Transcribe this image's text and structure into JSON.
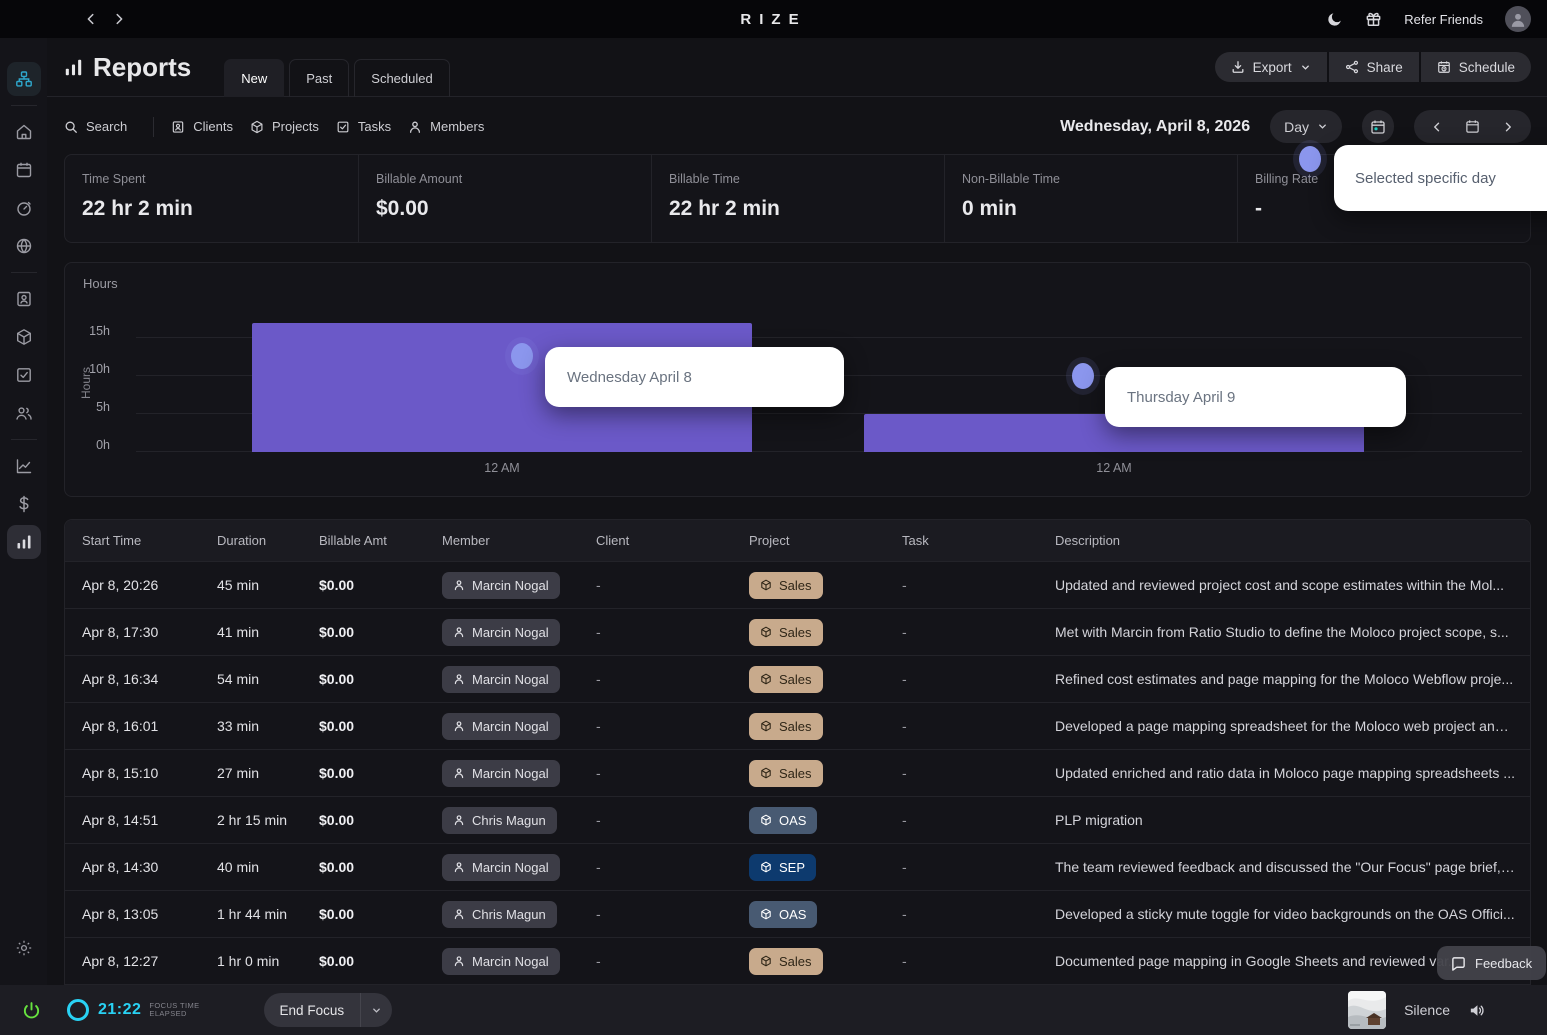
{
  "topbar": {
    "brand": "RIZE",
    "refer_friends": "Refer Friends"
  },
  "sidebar": {
    "items": [
      "workspace-sitemap",
      "home",
      "calendar",
      "timer",
      "globe",
      "clients-card",
      "projects-box",
      "tasks-check",
      "members-people",
      "analytics-line",
      "billing-dollar",
      "reports-bars",
      "settings-gear"
    ],
    "active_item": "reports-bars"
  },
  "reports": {
    "title": "Reports",
    "tabs": [
      "New",
      "Past",
      "Scheduled"
    ],
    "active_tab": "New",
    "actions": {
      "export": "Export",
      "share": "Share",
      "schedule": "Schedule"
    }
  },
  "filters": {
    "search": "Search",
    "clients": "Clients",
    "projects": "Projects",
    "tasks": "Tasks",
    "members": "Members"
  },
  "date_bar": {
    "date": "Wednesday, April 8, 2026",
    "range_selector": "Day"
  },
  "day_tooltip": {
    "text": "Selected specific day"
  },
  "stats": [
    {
      "label": "Time Spent",
      "value": "22 hr 2 min"
    },
    {
      "label": "Billable Amount",
      "value": "$0.00"
    },
    {
      "label": "Billable Time",
      "value": "22 hr 2 min"
    },
    {
      "label": "Non-Billable Time",
      "value": "0 min"
    },
    {
      "label": "Billing Rate",
      "value": "-"
    }
  ],
  "chart_data": {
    "type": "bar",
    "panel_label": "Hours",
    "ylabel": "Hours",
    "categories": [
      "Wednesday April 8",
      "Thursday April 9"
    ],
    "values": [
      17,
      5
    ],
    "unit": "hours",
    "y_ticks": [
      "0h",
      "5h",
      "10h",
      "15h"
    ],
    "ylim": [
      0,
      18.5
    ],
    "x_tick_labels": [
      "12 AM",
      "12 AM"
    ],
    "grid": true,
    "bar_color": "#6b59c8",
    "tooltips": [
      "Wednesday April 8",
      "Thursday April 9"
    ]
  },
  "table": {
    "columns": [
      "Start Time",
      "Duration",
      "Billable Amt",
      "Member",
      "Client",
      "Project",
      "Task",
      "Description"
    ],
    "rows": [
      {
        "start_time": "Apr 8, 20:26",
        "duration": "45 min",
        "billable": "$0.00",
        "member": "Marcin Nogal",
        "client": "-",
        "project": {
          "label": "Sales",
          "chip_class": "chip chip-project p-sales"
        },
        "task": "-",
        "description": "Updated and reviewed project cost and scope estimates within the Mol..."
      },
      {
        "start_time": "Apr 8, 17:30",
        "duration": "41 min",
        "billable": "$0.00",
        "member": "Marcin Nogal",
        "client": "-",
        "project": {
          "label": "Sales",
          "chip_class": "chip chip-project p-sales"
        },
        "task": "-",
        "description": "Met with Marcin from Ratio Studio to define the Moloco project scope, s..."
      },
      {
        "start_time": "Apr 8, 16:34",
        "duration": "54 min",
        "billable": "$0.00",
        "member": "Marcin Nogal",
        "client": "-",
        "project": {
          "label": "Sales",
          "chip_class": "chip chip-project p-sales"
        },
        "task": "-",
        "description": "Refined cost estimates and page mapping for the Moloco Webflow proje..."
      },
      {
        "start_time": "Apr 8, 16:01",
        "duration": "33 min",
        "billable": "$0.00",
        "member": "Marcin Nogal",
        "client": "-",
        "project": {
          "label": "Sales",
          "chip_class": "chip chip-project p-sales"
        },
        "task": "-",
        "description": "Developed a page mapping spreadsheet for the Moloco web project and ..."
      },
      {
        "start_time": "Apr 8, 15:10",
        "duration": "27 min",
        "billable": "$0.00",
        "member": "Marcin Nogal",
        "client": "-",
        "project": {
          "label": "Sales",
          "chip_class": "chip chip-project p-sales"
        },
        "task": "-",
        "description": "Updated enriched and ratio data in Moloco page mapping spreadsheets ..."
      },
      {
        "start_time": "Apr 8, 14:51",
        "duration": "2 hr 15 min",
        "billable": "$0.00",
        "member": "Chris Magun",
        "client": "-",
        "project": {
          "label": "OAS",
          "chip_class": "chip chip-project p-oas"
        },
        "task": "-",
        "description": "PLP migration"
      },
      {
        "start_time": "Apr 8, 14:30",
        "duration": "40 min",
        "billable": "$0.00",
        "member": "Marcin Nogal",
        "client": "-",
        "project": {
          "label": "SEP",
          "chip_class": "chip chip-project p-sep"
        },
        "task": "-",
        "description": "The team reviewed feedback and discussed the \"Our Focus\" page brief, ..."
      },
      {
        "start_time": "Apr 8, 13:05",
        "duration": "1 hr 44 min",
        "billable": "$0.00",
        "member": "Chris Magun",
        "client": "-",
        "project": {
          "label": "OAS",
          "chip_class": "chip chip-project p-oas"
        },
        "task": "-",
        "description": "Developed a sticky mute toggle for video backgrounds on the OAS Offici..."
      },
      {
        "start_time": "Apr 8, 12:27",
        "duration": "1 hr 0 min",
        "billable": "$0.00",
        "member": "Marcin Nogal",
        "client": "-",
        "project": {
          "label": "Sales",
          "chip_class": "chip chip-project p-sales"
        },
        "task": "-",
        "description": "Documented page mapping in Google Sheets and reviewed var..."
      }
    ]
  },
  "bottom_bar": {
    "timer": "21:22",
    "timer_caption_line1": "FOCUS TIME",
    "timer_caption_line2": "ELAPSED",
    "end_focus_label": "End Focus",
    "silence_label": "Silence"
  },
  "feedback": {
    "label": "Feedback"
  },
  "colors": {
    "accent_cyan": "#29d2f4",
    "bar_purple": "#6b59c8",
    "tooltip_dot_purple": "#8b96ed",
    "sidebar_active_teal": "#2fa8cd",
    "power_green": "#67e33f",
    "chip_sales": "#c8aa8c",
    "chip_oas": "#485a72",
    "chip_sep": "#0d3a6e"
  }
}
